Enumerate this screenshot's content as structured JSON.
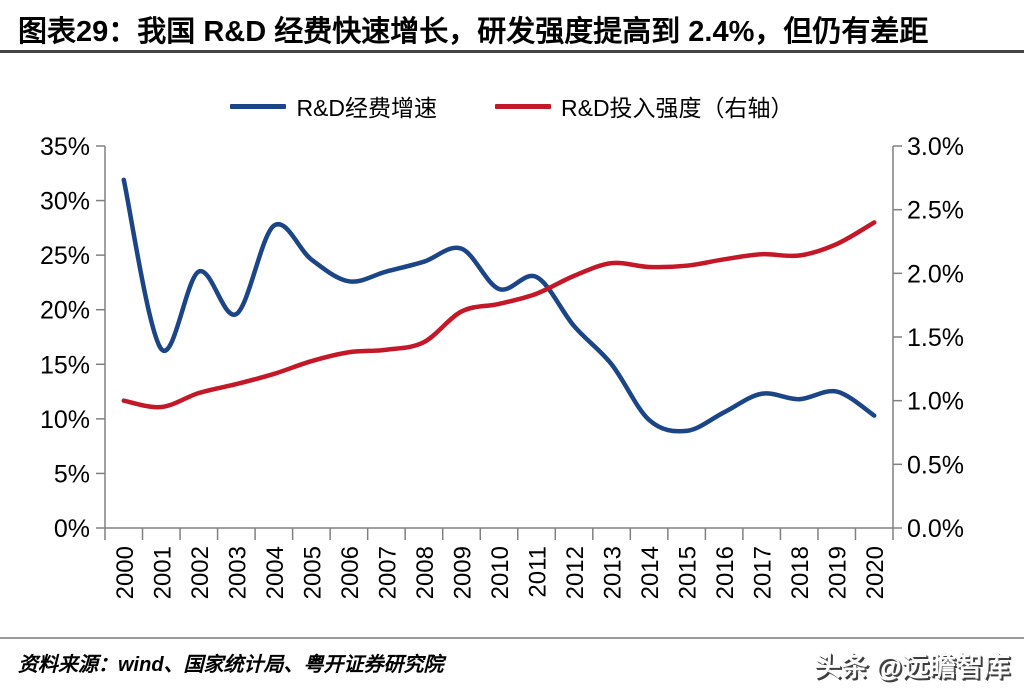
{
  "header": {
    "title": "图表29：我国 R&D 经费快速增长，研发强度提高到 2.4%，但仍有差距"
  },
  "legend": {
    "items": [
      {
        "label": "R&D经费增速",
        "color": "#1B4586"
      },
      {
        "label": "R&D投入强度（右轴）",
        "color": "#C41828"
      }
    ]
  },
  "footer": {
    "source": "资料来源：wind、国家统计局、粤开证券研究院",
    "watermark": "头条 @远瞻智库"
  },
  "chart_data": {
    "type": "line",
    "title": "",
    "grid": false,
    "legend_position": "top",
    "smooth": true,
    "axis_color": "#808080",
    "label_color": "#000000",
    "categories": [
      "2000",
      "2001",
      "2002",
      "2003",
      "2004",
      "2005",
      "2006",
      "2007",
      "2008",
      "2009",
      "2010",
      "2011",
      "2012",
      "2013",
      "2014",
      "2015",
      "2016",
      "2017",
      "2018",
      "2019",
      "2020"
    ],
    "series": [
      {
        "name": "R&D经费增速",
        "axis": "left",
        "color": "#1B4586",
        "values": [
          31.9,
          16.4,
          23.5,
          19.6,
          27.7,
          24.6,
          22.6,
          23.5,
          24.4,
          25.6,
          21.9,
          23.0,
          18.5,
          15.0,
          9.9,
          8.9,
          10.6,
          12.3,
          11.8,
          12.5,
          10.3
        ]
      },
      {
        "name": "R&D投入强度（右轴）",
        "axis": "right",
        "color": "#C41828",
        "values": [
          1.0,
          0.95,
          1.06,
          1.13,
          1.21,
          1.31,
          1.38,
          1.4,
          1.46,
          1.7,
          1.76,
          1.84,
          1.98,
          2.08,
          2.05,
          2.06,
          2.11,
          2.15,
          2.14,
          2.23,
          2.4
        ]
      }
    ],
    "left_axis": {
      "min": 0,
      "max": 35,
      "step": 5,
      "ticks": [
        "35%",
        "30%",
        "25%",
        "20%",
        "15%",
        "10%",
        "5%",
        "0%"
      ]
    },
    "right_axis": {
      "min": 0,
      "max": 3,
      "step": 0.5,
      "ticks": [
        "3.0%",
        "2.5%",
        "2.0%",
        "1.5%",
        "1.0%",
        "0.5%",
        "0.0%"
      ]
    }
  }
}
